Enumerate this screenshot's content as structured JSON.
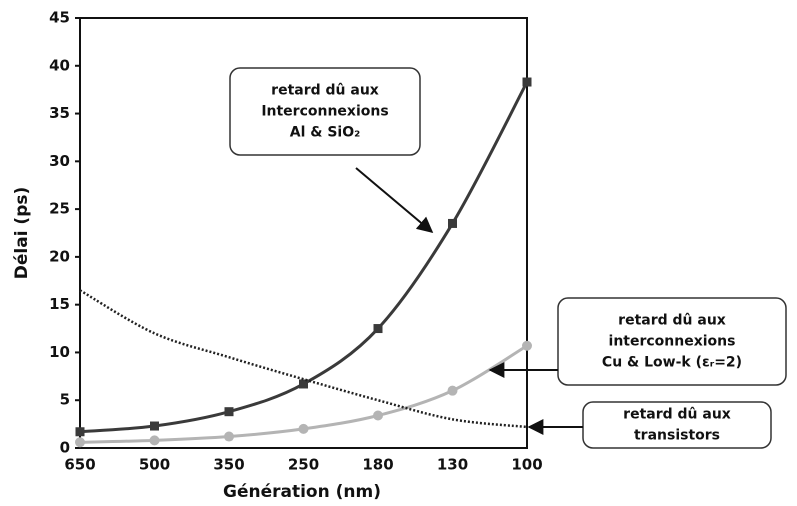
{
  "chart_data": {
    "type": "line",
    "xlabel": "Génération (nm)",
    "ylabel": "Délai (ps)",
    "categories": [
      "650",
      "500",
      "350",
      "250",
      "180",
      "130",
      "100"
    ],
    "ylim": [
      0,
      45
    ],
    "yticks": [
      0,
      5,
      10,
      15,
      20,
      25,
      30,
      35,
      40,
      45
    ],
    "series": [
      {
        "label": [
          "retard dû aux",
          "Interconnexions",
          "Al & SiO₂"
        ],
        "color": "#3a3a3a",
        "marker": "square",
        "dash": "solid",
        "values": [
          1.7,
          2.3,
          3.8,
          6.7,
          12.5,
          23.5,
          38.3
        ]
      },
      {
        "label": [
          "retard dû aux",
          "interconnexions",
          "Cu & Low-k (εᵣ=2)"
        ],
        "color": "#b4b4b4",
        "marker": "circle",
        "dash": "solid",
        "values": [
          0.6,
          0.8,
          1.2,
          2.0,
          3.4,
          6.0,
          10.7
        ]
      },
      {
        "label": [
          "retard dû aux",
          "transistors"
        ],
        "color": "#222222",
        "marker": "none",
        "dash": "dotted",
        "values": [
          16.5,
          12.0,
          9.5,
          7.2,
          5.0,
          3.0,
          2.2
        ]
      }
    ]
  }
}
